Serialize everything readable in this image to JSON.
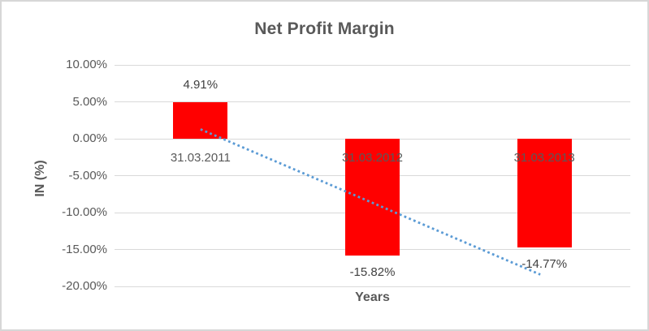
{
  "chart": {
    "title": "Net Profit Margin",
    "x_axis_title": "Years",
    "y_axis_title": "IN (%)"
  },
  "chart_data": {
    "type": "bar",
    "title": "Net Profit Margin",
    "xlabel": "Years",
    "ylabel": "IN (%)",
    "categories": [
      "31.03.2011",
      "31.03.2012",
      "31.03.2013"
    ],
    "values": [
      4.91,
      -15.82,
      -14.77
    ],
    "data_labels": [
      "4.91%",
      "-15.82%",
      "-14.77%"
    ],
    "ylim": [
      -20,
      10
    ],
    "ytick_values": [
      10,
      5,
      0,
      -5,
      -10,
      -15,
      -20
    ],
    "ytick_labels": [
      "10.00%",
      "5.00%",
      "0.00%",
      "-5.00%",
      "-10.00%",
      "-15.00%",
      "-20.00%"
    ],
    "grid": true,
    "legend": "none",
    "colors": {
      "bar": "#ff0000",
      "gridline": "#d9d9d9",
      "text": "#595959",
      "data_label_text": "#404040",
      "trendline": "#5b9bd5"
    },
    "trendline": {
      "type": "linear",
      "style": "dotted",
      "color": "#5b9bd5",
      "start_value": 1.28,
      "end_value": -18.4
    }
  }
}
